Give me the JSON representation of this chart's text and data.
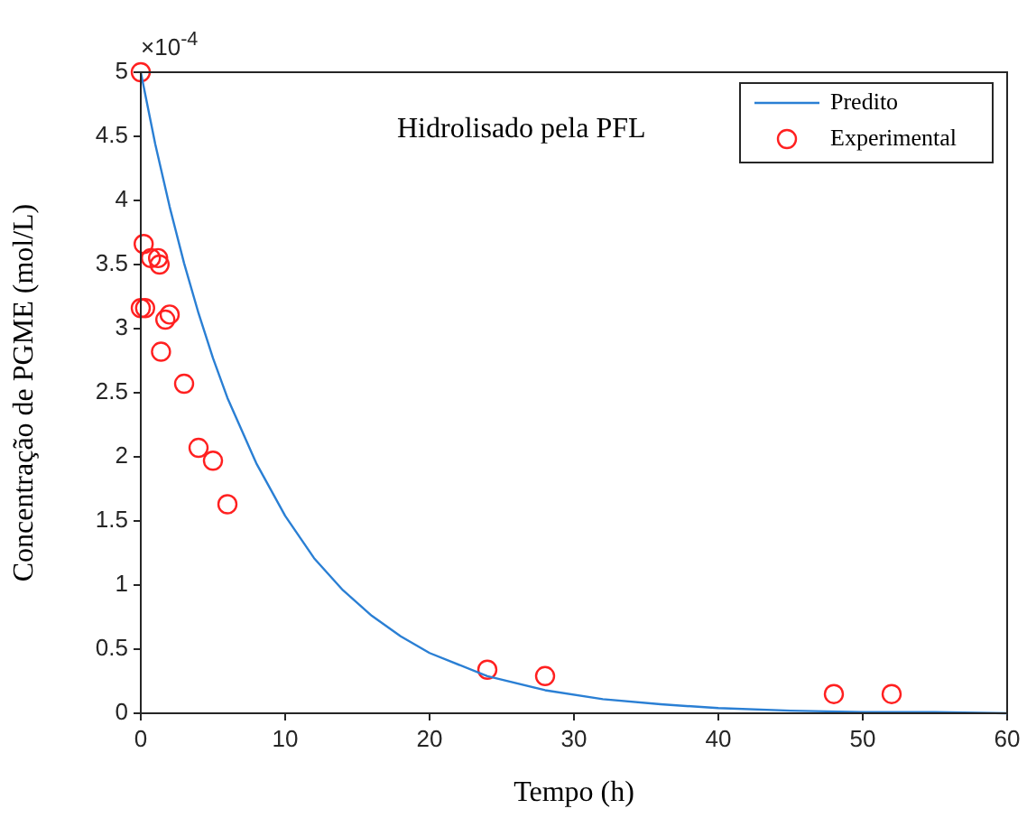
{
  "chart_data": {
    "type": "line",
    "title": "Hidrolisado pela PFL",
    "xlabel": "Tempo (h)",
    "ylabel": "Concentração de PGME (mol/L)",
    "annotations": [
      "×10$^{-4}$"
    ],
    "xlim": [
      0,
      60
    ],
    "xticks": [
      0,
      10,
      20,
      30,
      40,
      50,
      60
    ],
    "ylim": [
      0,
      5
    ],
    "yticks": [
      0,
      0.5,
      1,
      1.5,
      2,
      2.5,
      3,
      3.5,
      4,
      4.5,
      5
    ],
    "grid": false,
    "legend": "top right",
    "series": [
      {
        "name": "Predito",
        "type": "line",
        "marker": "none",
        "color": "#2a7fd4",
        "x": [
          0,
          1,
          2,
          3,
          4,
          5,
          6,
          8,
          10,
          12,
          14,
          16,
          18,
          20,
          24,
          28,
          32,
          36,
          40,
          45,
          50,
          55,
          60
        ],
        "values": [
          5.0,
          4.44,
          3.95,
          3.51,
          3.12,
          2.77,
          2.46,
          1.95,
          1.54,
          1.21,
          0.96,
          0.76,
          0.6,
          0.47,
          0.29,
          0.18,
          0.11,
          0.07,
          0.04,
          0.02,
          0.01,
          0.01,
          0.0
        ]
      },
      {
        "name": "Experimental",
        "type": "scatter",
        "marker": "circle",
        "color": "#ff2020",
        "x": [
          0,
          0.2,
          0.7,
          1.2,
          1.3,
          0,
          0.3,
          2,
          1.7,
          1.4,
          3,
          4,
          5,
          6,
          24,
          28,
          48,
          52
        ],
        "values": [
          5.0,
          3.66,
          3.55,
          3.55,
          3.5,
          3.16,
          3.16,
          3.11,
          3.07,
          2.82,
          2.57,
          2.07,
          1.97,
          1.63,
          0.34,
          0.29,
          0.15,
          0.15
        ]
      }
    ]
  }
}
